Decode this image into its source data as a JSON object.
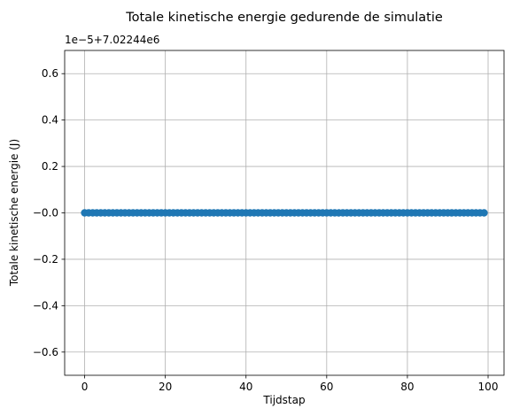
{
  "chart_data": {
    "type": "scatter",
    "title": "Totale kinetische energie gedurende de simulatie",
    "xlabel": "Tijdstap",
    "ylabel": "Totale kinetische energie (J)",
    "y_offset_text": "1e−5+7.02244e6",
    "xlim": [
      -4.95,
      103.95
    ],
    "ylim": [
      -0.7,
      0.7
    ],
    "xticks": [
      0,
      20,
      40,
      60,
      80,
      100
    ],
    "yticks": [
      -0.6,
      -0.4,
      -0.2,
      0.0,
      0.2,
      0.4,
      0.6
    ],
    "ytick_labels": [
      "−0.6",
      "−0.4",
      "−0.2",
      "−0.0",
      "0.2",
      "0.4",
      "0.6"
    ],
    "grid": true,
    "line_style": "solid line with circle markers",
    "series": [
      {
        "color": "#1f77b4",
        "x_start": 0,
        "x_end": 99,
        "x_step": 1,
        "y_constant": 0.0,
        "note": "values are offset from 7.02244e6 in units of 1e-5"
      }
    ]
  }
}
